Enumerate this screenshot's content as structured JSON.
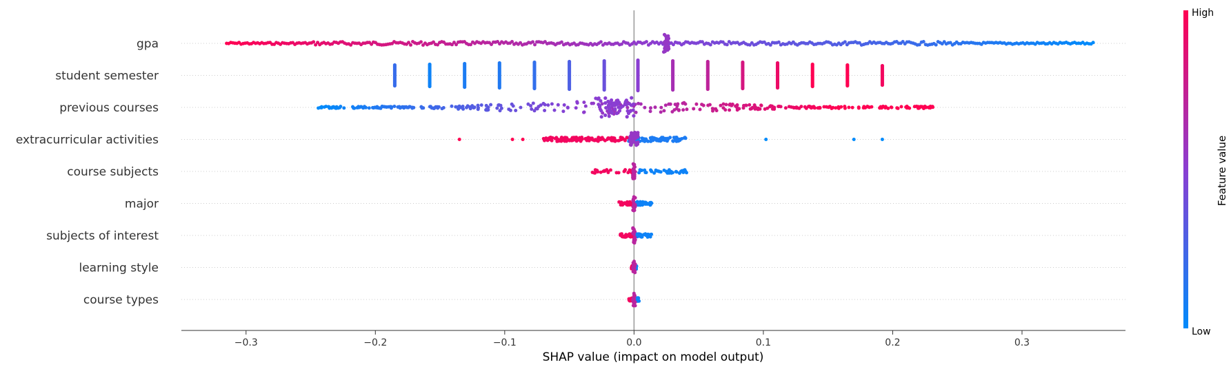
{
  "chart_data": {
    "type": "scatter",
    "subtype": "shap-beeswarm",
    "title": "",
    "xlabel": "SHAP value (impact on model output)",
    "xlim": [
      -0.35,
      0.38
    ],
    "xticks": [
      -0.3,
      -0.2,
      -0.1,
      0.0,
      0.1,
      0.2,
      0.3
    ],
    "xtick_labels": [
      "−0.3",
      "−0.2",
      "−0.1",
      "0.0",
      "0.1",
      "0.2",
      "0.3"
    ],
    "grid": "dotted horizontal per feature",
    "colorbar": {
      "title": "Feature value",
      "high_label": "High",
      "low_label": "Low",
      "low_color": "#008bfb",
      "mid_color": "#8a3ed2",
      "high_color": "#ff0052",
      "placement": "right"
    },
    "zero_line_color": "#999999",
    "features": [
      {
        "name": "gpa",
        "description": "continuous; low values (blue) positive SHAP, high values (red) negative SHAP",
        "range": [
          -0.315,
          0.355
        ],
        "cluster": {
          "x": 0.025,
          "count": 20
        },
        "points": [
          {
            "x": -0.3,
            "v": 1.0
          },
          {
            "x": -0.25,
            "v": 0.95
          },
          {
            "x": -0.2,
            "v": 0.88
          },
          {
            "x": -0.15,
            "v": 0.8
          },
          {
            "x": -0.1,
            "v": 0.72
          },
          {
            "x": -0.05,
            "v": 0.64
          },
          {
            "x": 0.0,
            "v": 0.57
          },
          {
            "x": 0.05,
            "v": 0.47
          },
          {
            "x": 0.1,
            "v": 0.38
          },
          {
            "x": 0.15,
            "v": 0.28
          },
          {
            "x": 0.2,
            "v": 0.15
          },
          {
            "x": 0.25,
            "v": 0.05
          },
          {
            "x": 0.3,
            "v": 0.0
          },
          {
            "x": 0.35,
            "v": 0.0
          }
        ]
      },
      {
        "name": "student semester",
        "description": "discrete steps; values left are low (blue), right are high (red)",
        "steps": [
          {
            "x": -0.185,
            "v": 0.2
          },
          {
            "x": -0.158,
            "v": 0.05
          },
          {
            "x": -0.131,
            "v": 0.1
          },
          {
            "x": -0.104,
            "v": 0.12
          },
          {
            "x": -0.077,
            "v": 0.18
          },
          {
            "x": -0.05,
            "v": 0.28
          },
          {
            "x": -0.023,
            "v": 0.38
          },
          {
            "x": 0.003,
            "v": 0.5
          },
          {
            "x": 0.03,
            "v": 0.62
          },
          {
            "x": 0.057,
            "v": 0.72
          },
          {
            "x": 0.084,
            "v": 0.82
          },
          {
            "x": 0.111,
            "v": 0.92
          },
          {
            "x": 0.138,
            "v": 1.0
          },
          {
            "x": 0.165,
            "v": 1.0
          },
          {
            "x": 0.192,
            "v": 0.95
          }
        ]
      },
      {
        "name": "previous courses",
        "description": "dense around -0.015; low values negative SHAP, high values positive SHAP",
        "range": [
          -0.245,
          0.235
        ],
        "cluster": {
          "x": -0.015,
          "count": 60
        }
      },
      {
        "name": "extracurricular activities",
        "description": "high values negative SHAP, low values positive SHAP; dense near 0",
        "range": [
          -0.135,
          0.192
        ],
        "cluster": {
          "x": 0.0,
          "count": 40
        }
      },
      {
        "name": "course subjects",
        "description": "red left, blue right",
        "range": [
          -0.033,
          0.042
        ],
        "cluster": {
          "x": 0.0,
          "count": 25
        }
      },
      {
        "name": "major",
        "description": "narrow spread",
        "range": [
          -0.012,
          0.014
        ],
        "cluster": {
          "x": 0.0,
          "count": 20
        }
      },
      {
        "name": "subjects of interest",
        "description": "narrow spread",
        "range": [
          -0.011,
          0.014
        ],
        "cluster": {
          "x": 0.0,
          "count": 20
        }
      },
      {
        "name": "learning style",
        "description": "very narrow near 0",
        "range": [
          -0.002,
          0.002
        ],
        "cluster": {
          "x": 0.0,
          "count": 18
        }
      },
      {
        "name": "course types",
        "description": "very narrow near 0",
        "range": [
          -0.004,
          0.004
        ],
        "cluster": {
          "x": 0.0,
          "count": 18
        }
      }
    ]
  }
}
